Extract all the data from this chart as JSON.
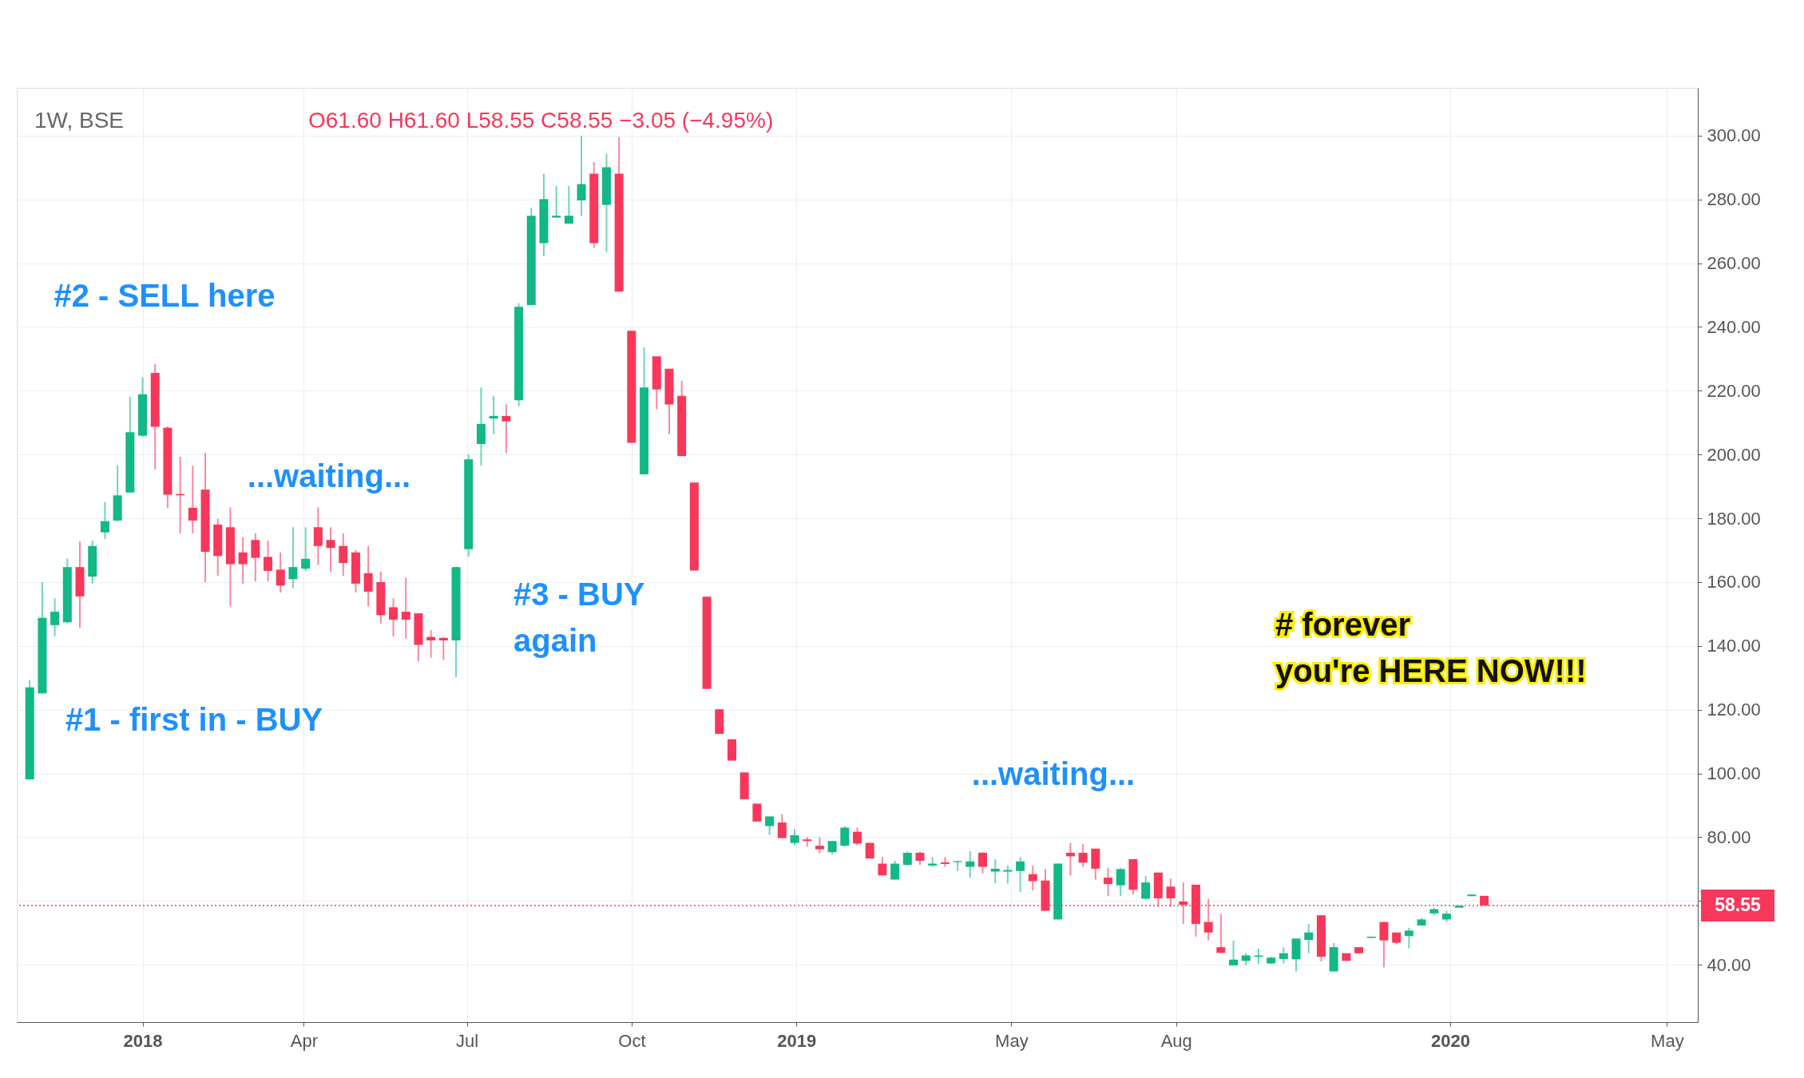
{
  "chart_data": {
    "type": "candlestick",
    "title": "1W, BSE",
    "subtitle": "O61.60  H61.60  L58.55  C58.55  −3.05 (−4.95%)",
    "x": [
      "2017-10-30",
      "2017-11-06",
      "2017-11-13",
      "2017-11-20",
      "2017-11-27",
      "2017-12-04",
      "2017-12-11",
      "2017-12-18",
      "2017-12-25",
      "2018-01-01",
      "2018-01-08",
      "2018-01-15",
      "2018-01-22",
      "2018-01-29",
      "2018-02-05",
      "2018-02-12",
      "2018-02-19",
      "2018-02-26",
      "2018-03-05",
      "2018-03-12",
      "2018-03-19",
      "2018-03-26",
      "2018-04-02",
      "2018-04-09",
      "2018-04-16",
      "2018-04-23",
      "2018-04-30",
      "2018-05-07",
      "2018-05-14",
      "2018-05-21",
      "2018-05-28",
      "2018-06-04",
      "2018-06-11",
      "2018-06-18",
      "2018-06-25",
      "2018-07-02",
      "2018-07-09",
      "2018-07-16",
      "2018-07-23",
      "2018-07-30",
      "2018-08-06",
      "2018-08-13",
      "2018-08-20",
      "2018-08-27",
      "2018-09-03",
      "2018-09-10",
      "2018-09-17",
      "2018-09-24",
      "2018-10-01",
      "2018-10-08",
      "2018-10-15",
      "2018-10-22",
      "2018-10-29",
      "2018-11-05",
      "2018-11-12",
      "2018-11-19",
      "2018-11-26",
      "2018-12-03",
      "2018-12-10",
      "2018-12-17",
      "2018-12-24",
      "2018-12-31",
      "2019-01-07",
      "2019-01-14",
      "2019-01-21",
      "2019-01-28",
      "2019-02-04",
      "2019-02-11",
      "2019-02-18",
      "2019-02-25",
      "2019-03-04",
      "2019-03-11",
      "2019-03-18",
      "2019-03-25",
      "2019-04-01",
      "2019-04-08",
      "2019-04-15",
      "2019-04-22",
      "2019-04-29",
      "2019-05-06",
      "2019-05-13",
      "2019-05-20",
      "2019-05-27",
      "2019-06-03",
      "2019-06-10",
      "2019-06-17",
      "2019-06-24",
      "2019-07-01",
      "2019-07-08",
      "2019-07-15",
      "2019-07-22",
      "2019-07-29",
      "2019-08-05",
      "2019-08-12",
      "2019-08-19",
      "2019-08-26",
      "2019-09-02",
      "2019-09-09",
      "2019-09-16",
      "2019-09-23",
      "2019-09-30",
      "2019-10-07",
      "2019-10-14",
      "2019-10-21",
      "2019-10-28",
      "2019-11-04",
      "2019-11-11",
      "2019-11-18",
      "2019-11-25",
      "2019-12-02",
      "2019-12-09",
      "2019-12-16",
      "2019-12-23",
      "2019-12-30",
      "2020-01-06",
      "2020-01-13",
      "2020-01-20"
    ],
    "ohlc": [
      [
        98.1,
        129.3,
        98,
        127
      ],
      [
        125.1,
        160,
        125,
        148.8
      ],
      [
        146.5,
        154.9,
        143,
        150.7
      ],
      [
        147.4,
        167.4,
        147,
        164.7
      ],
      [
        164.7,
        172.7,
        145.6,
        155.5
      ],
      [
        161.7,
        173,
        159.5,
        171.3
      ],
      [
        175.6,
        185.1,
        173.5,
        179.1
      ],
      [
        179.3,
        196.5,
        179,
        187.2
      ],
      [
        188.1,
        218.1,
        188,
        207
      ],
      [
        205.9,
        224.2,
        205.5,
        218.9
      ],
      [
        225.6,
        228.4,
        195.3,
        208.7
      ],
      [
        208.4,
        208.8,
        183.3,
        187.4
      ],
      [
        187.6,
        199.3,
        175.3,
        187.2
      ],
      [
        183.3,
        196.5,
        175.3,
        179.3
      ],
      [
        189,
        200.5,
        160,
        169.5
      ],
      [
        178,
        179.8,
        162,
        168.2
      ],
      [
        177.2,
        183.4,
        152.4,
        165.6
      ],
      [
        169.3,
        174,
        159.5,
        165.6
      ],
      [
        173.2,
        175.3,
        160.2,
        167.6
      ],
      [
        167.9,
        173,
        160.2,
        163.5
      ],
      [
        163.9,
        169.3,
        156.7,
        158.9
      ],
      [
        160.9,
        177.2,
        158.1,
        164.7
      ],
      [
        164.2,
        177.2,
        163.5,
        167.3
      ],
      [
        177.2,
        183.4,
        165.4,
        171.3
      ],
      [
        173.2,
        177.2,
        163.3,
        170.7
      ],
      [
        171.3,
        175.3,
        162,
        166
      ],
      [
        169.3,
        170,
        156.7,
        159.5
      ],
      [
        162.8,
        171.3,
        152.4,
        157
      ],
      [
        160,
        163.3,
        147,
        149.6
      ],
      [
        152.1,
        154.9,
        143,
        148.2
      ],
      [
        150.7,
        161.4,
        142.3,
        148.2
      ],
      [
        150.2,
        150.2,
        135.1,
        140.3
      ],
      [
        142.8,
        144.9,
        136.3,
        141.7
      ],
      [
        142.5,
        142.8,
        135.6,
        141.7
      ],
      [
        141.7,
        164.8,
        130.2,
        164.7
      ],
      [
        170.3,
        200,
        168,
        198.5
      ],
      [
        203.3,
        221,
        196.5,
        209.6
      ],
      [
        211.3,
        218.4,
        206.4,
        212.1
      ],
      [
        212.1,
        215.7,
        200.5,
        210.4
      ],
      [
        217,
        247.5,
        215.1,
        246.3
      ],
      [
        246.9,
        277.4,
        246.9,
        274.9
      ],
      [
        266.3,
        288,
        262.3,
        280.1
      ],
      [
        274.3,
        284.2,
        274.3,
        274.9
      ],
      [
        272.4,
        284.2,
        272.4,
        274.9
      ],
      [
        279.7,
        300,
        274.9,
        284.8
      ],
      [
        288.1,
        291.7,
        264.8,
        266.3
      ],
      [
        278.3,
        294.3,
        263.5,
        290.1
      ],
      [
        288.1,
        299.6,
        251.1,
        251.1
      ],
      [
        238.8,
        238.8,
        203.7,
        203.7
      ],
      [
        193.8,
        233.6,
        193.8,
        221
      ],
      [
        230.8,
        230.8,
        214.2,
        220.4
      ],
      [
        226.9,
        226.9,
        206.4,
        215.7
      ],
      [
        218.4,
        223.1,
        199.5,
        199.5
      ],
      [
        191.2,
        191.2,
        163.6,
        163.6
      ],
      [
        155.4,
        155.4,
        126.5,
        126.5
      ],
      [
        120.1,
        120.1,
        112.4,
        112.4
      ],
      [
        110.7,
        110.7,
        104,
        104
      ],
      [
        100.3,
        100.3,
        91.9,
        91.9
      ],
      [
        90.5,
        90.5,
        84.9,
        84.9
      ],
      [
        83.5,
        86.5,
        80.7,
        86.5
      ],
      [
        84.6,
        87.2,
        79.7,
        79.7
      ],
      [
        78.2,
        82.6,
        77.4,
        80.6
      ],
      [
        79.3,
        80,
        77,
        78.8
      ],
      [
        77.3,
        80,
        74.9,
        76.2
      ],
      [
        75.3,
        78.8,
        74.6,
        78.8
      ],
      [
        77.3,
        83.4,
        77,
        83
      ],
      [
        81.7,
        83,
        77.5,
        78
      ],
      [
        78.2,
        78.2,
        73.3,
        73.3
      ],
      [
        71.7,
        73.8,
        68,
        68
      ],
      [
        66.7,
        72.6,
        66.7,
        71.7
      ],
      [
        71.3,
        75.5,
        71,
        75.1
      ],
      [
        75.1,
        75.5,
        71.3,
        72.6
      ],
      [
        71.1,
        73.7,
        70.7,
        71.7
      ],
      [
        72.1,
        73.8,
        70.7,
        71.6
      ],
      [
        72.2,
        72.6,
        69.3,
        72.5
      ],
      [
        70.7,
        75.6,
        67.3,
        72.4
      ],
      [
        75.1,
        75.3,
        68.6,
        70.7
      ],
      [
        69.2,
        73.1,
        65.5,
        70.1
      ],
      [
        69.2,
        71.1,
        65.5,
        69.7
      ],
      [
        69.4,
        73.8,
        62.8,
        72.4
      ],
      [
        68.4,
        71.1,
        63.3,
        66.2
      ],
      [
        66.4,
        70,
        56.9,
        56.9
      ],
      [
        54.2,
        71.7,
        54.2,
        71.7
      ],
      [
        75.1,
        78.2,
        68,
        74
      ],
      [
        75.1,
        77.8,
        70.7,
        72
      ],
      [
        76.4,
        76.4,
        66.7,
        70.1
      ],
      [
        67.3,
        70.4,
        61.5,
        65.3
      ],
      [
        64.9,
        70.4,
        61.5,
        70
      ],
      [
        73.1,
        73.1,
        62,
        63.5
      ],
      [
        60.7,
        67.8,
        60.4,
        65.8
      ],
      [
        68.9,
        68.9,
        58.1,
        60.8
      ],
      [
        64.5,
        67,
        58.1,
        60.8
      ],
      [
        59.8,
        65.8,
        52.8,
        58.8
      ],
      [
        65.1,
        65.1,
        48.8,
        52.8
      ],
      [
        53.4,
        60.6,
        47.6,
        50.1
      ],
      [
        45.5,
        55.9,
        43.7,
        43.7
      ],
      [
        39.8,
        47.6,
        39.8,
        41.6
      ],
      [
        41.2,
        43.6,
        39.8,
        42.9
      ],
      [
        42.5,
        45.1,
        40.3,
        42.9
      ],
      [
        40.4,
        42.5,
        40.2,
        42.2
      ],
      [
        41.8,
        45.5,
        40.4,
        43.6
      ],
      [
        41.7,
        48.2,
        37.9,
        48.2
      ],
      [
        47.8,
        52.8,
        43.6,
        50.1
      ],
      [
        55.5,
        55.5,
        41,
        42.5
      ],
      [
        37.9,
        46.8,
        37.9,
        45.5
      ],
      [
        43.6,
        43.6,
        41.2,
        41.2
      ],
      [
        45.5,
        45.5,
        43.6,
        43.6
      ],
      [
        48.4,
        48.8,
        48.4,
        48.8
      ],
      [
        53.4,
        53.4,
        39.2,
        47.6
      ],
      [
        50.1,
        50.1,
        46.4,
        46.9
      ],
      [
        49,
        51.6,
        45.1,
        50.7
      ],
      [
        52.3,
        54.6,
        52.3,
        54.2
      ],
      [
        56.1,
        57.9,
        55.5,
        57.4
      ],
      [
        54.2,
        56.9,
        53.4,
        56
      ],
      [
        57.9,
        58.5,
        57.9,
        58.5
      ],
      [
        61.5,
        62,
        61.5,
        62
      ],
      [
        61.6,
        61.6,
        58.55,
        58.55
      ]
    ],
    "colors": [
      "#12b886",
      "#12b886",
      "#12b886",
      "#12b886",
      "#f7385b",
      "#12b886",
      "#12b886",
      "#12b886",
      "#12b886",
      "#12b886",
      "#f7385b",
      "#f7385b",
      "#f7385b",
      "#f7385b",
      "#f7385b",
      "#f7385b",
      "#f7385b",
      "#f7385b",
      "#f7385b",
      "#f7385b",
      "#f7385b",
      "#12b886",
      "#12b886",
      "#f7385b",
      "#f7385b",
      "#f7385b",
      "#f7385b",
      "#f7385b",
      "#f7385b",
      "#f7385b",
      "#f7385b",
      "#f7385b",
      "#f7385b",
      "#f7385b",
      "#12b886",
      "#12b886",
      "#12b886",
      "#12b886",
      "#f7385b",
      "#12b886",
      "#12b886",
      "#12b886",
      "#12b886",
      "#12b886",
      "#12b886",
      "#f7385b",
      "#12b886",
      "#f7385b",
      "#f7385b",
      "#12b886",
      "#f7385b",
      "#f7385b",
      "#f7385b",
      "#f7385b",
      "#f7385b",
      "#f7385b",
      "#f7385b",
      "#f7385b",
      "#f7385b",
      "#12b886",
      "#f7385b",
      "#12b886",
      "#f7385b",
      "#f7385b",
      "#12b886",
      "#12b886",
      "#f7385b",
      "#f7385b",
      "#f7385b",
      "#12b886",
      "#12b886",
      "#f7385b",
      "#12b886",
      "#f7385b",
      "#12b886",
      "#12b886",
      "#f7385b",
      "#12b886",
      "#12b886",
      "#12b886",
      "#f7385b",
      "#f7385b",
      "#12b886",
      "#f7385b",
      "#f7385b",
      "#f7385b",
      "#f7385b",
      "#12b886",
      "#f7385b",
      "#12b886",
      "#f7385b",
      "#f7385b",
      "#f7385b",
      "#f7385b",
      "#f7385b",
      "#f7385b",
      "#12b886",
      "#12b886",
      "#12b886",
      "#12b886",
      "#12b886",
      "#12b886",
      "#12b886",
      "#f7385b",
      "#12b886",
      "#f7385b",
      "#f7385b",
      "#12b886",
      "#f7385b",
      "#f7385b",
      "#12b886",
      "#12b886",
      "#12b886",
      "#12b886",
      "#12b886",
      "#12b886",
      "#f7385b"
    ],
    "xlim": [
      "2017-10-25",
      "2020-05-16"
    ],
    "xticks": [
      {
        "value": "2018-01-01",
        "label": "2018"
      },
      {
        "value": "2018-04-01",
        "label": "Apr"
      },
      {
        "value": "2018-07-01",
        "label": "Jul"
      },
      {
        "value": "2018-10-01",
        "label": "Oct"
      },
      {
        "value": "2019-01-01",
        "label": "2019"
      },
      {
        "value": "2019-05-01",
        "label": "May"
      },
      {
        "value": "2019-08-01",
        "label": "Aug"
      },
      {
        "value": "2020-01-01",
        "label": "2020"
      },
      {
        "value": "2020-05-01",
        "label": "May"
      }
    ],
    "ylim": [
      22,
      315
    ],
    "yticks": [
      {
        "value": 40,
        "label": "40.00"
      },
      {
        "value": 60,
        "label": null
      },
      {
        "value": 80,
        "label": "80.00"
      },
      {
        "value": 100,
        "label": "100.00"
      },
      {
        "value": 120,
        "label": "120.00"
      },
      {
        "value": 140,
        "label": "140.00"
      },
      {
        "value": 160,
        "label": "160.00"
      },
      {
        "value": 180,
        "label": "180.00"
      },
      {
        "value": 200,
        "label": "200.00"
      },
      {
        "value": 220,
        "label": "220.00"
      },
      {
        "value": 240,
        "label": "240.00"
      },
      {
        "value": 260,
        "label": "260.00"
      },
      {
        "value": 280,
        "label": "280.00"
      },
      {
        "value": 300,
        "label": "300.00"
      }
    ],
    "grid": true,
    "ref_lines": [
      {
        "axis": "y",
        "value": 58.55,
        "label": "58.55",
        "color": "#f7385b",
        "line_style": "dotted"
      }
    ],
    "annotations": [
      "#2 - SELL here",
      "...waiting...",
      "#1 - first in - BUY",
      "#3 - BUY\nagain",
      "...waiting...",
      "# forever\nyou're HERE NOW!!!"
    ]
  }
}
